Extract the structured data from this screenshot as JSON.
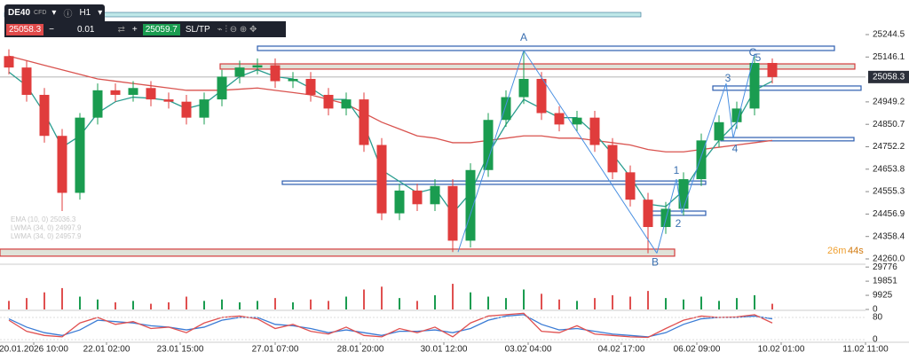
{
  "toolbar": {
    "symbol": "DE40",
    "badge": "CFD",
    "timeframe": "H1",
    "sell": "25058.3",
    "lot": "0.01",
    "buy": "25059.7",
    "sltp": "SL/TP"
  },
  "chart_data": {
    "type": "candlestick",
    "open": [
      25150,
      25100,
      24980,
      24800,
      24550,
      24880,
      25000,
      24980,
      25010,
      24960,
      24950,
      24880,
      24960,
      25060,
      25100,
      25110,
      25040,
      25050,
      24980,
      24920,
      24960,
      24760,
      24460,
      24560,
      24500,
      24580,
      24340,
      24650,
      24870,
      24970,
      25050,
      24900,
      24850,
      24880,
      24760,
      24640,
      24520,
      24400,
      24480,
      24610,
      24780,
      24860,
      24920,
      25120
    ],
    "high": [
      25180,
      25130,
      25010,
      24830,
      24900,
      25030,
      25030,
      25040,
      25040,
      24990,
      24980,
      24990,
      25090,
      25130,
      25140,
      25140,
      25080,
      25080,
      25010,
      24990,
      24990,
      24790,
      24590,
      24590,
      24610,
      24610,
      24680,
      24900,
      25000,
      25175,
      25080,
      24930,
      24910,
      24910,
      24790,
      24670,
      24550,
      24510,
      24640,
      24810,
      24890,
      24950,
      25150,
      25140
    ],
    "low": [
      25070,
      24950,
      24770,
      24470,
      24520,
      24850,
      24950,
      24950,
      24930,
      24920,
      24850,
      24850,
      24930,
      25030,
      25070,
      25010,
      25010,
      24950,
      24890,
      24890,
      24730,
      24430,
      24430,
      24470,
      24470,
      24290,
      24310,
      24620,
      24840,
      24940,
      24870,
      24820,
      24820,
      24730,
      24610,
      24490,
      24285,
      24370,
      24450,
      24580,
      24750,
      24830,
      24890,
      25030
    ],
    "close": [
      25100,
      24980,
      24800,
      24550,
      24880,
      25000,
      24980,
      25010,
      24960,
      24950,
      24880,
      24960,
      25060,
      25100,
      25110,
      25040,
      25050,
      24980,
      24920,
      24960,
      24760,
      24460,
      24560,
      24500,
      24580,
      24340,
      24650,
      24870,
      24970,
      25050,
      24900,
      24850,
      24880,
      24760,
      24640,
      24520,
      24400,
      24480,
      24610,
      24780,
      24860,
      24920,
      25120,
      25058.3
    ],
    "ma_fast": [
      25080,
      25020,
      24900,
      24750,
      24800,
      24900,
      24950,
      24970,
      24965,
      24955,
      24920,
      24940,
      25000,
      25060,
      25090,
      25060,
      25050,
      25010,
      24960,
      24960,
      24850,
      24650,
      24600,
      24550,
      24570,
      24460,
      24550,
      24720,
      24850,
      24960,
      24920,
      24880,
      24880,
      24810,
      24720,
      24620,
      24500,
      24490,
      24560,
      24680,
      24780,
      24860,
      25000,
      25040
    ],
    "ma_slow": [
      25150,
      25130,
      25110,
      25090,
      25070,
      25050,
      25040,
      25030,
      25020,
      25010,
      25000,
      25000,
      25000,
      25005,
      25010,
      25000,
      24990,
      24980,
      24960,
      24940,
      24900,
      24860,
      24830,
      24800,
      24790,
      24770,
      24770,
      24780,
      24790,
      24800,
      24800,
      24790,
      24790,
      24780,
      24770,
      24760,
      24740,
      24730,
      24730,
      24740,
      24750,
      24760,
      24770,
      24780
    ],
    "volume": [
      6000,
      8000,
      12000,
      15000,
      9000,
      7000,
      5000,
      6000,
      4000,
      5000,
      9000,
      6000,
      7000,
      5000,
      6000,
      8000,
      5000,
      7000,
      6000,
      9000,
      14000,
      16000,
      8000,
      6000,
      10000,
      18000,
      12000,
      9000,
      8000,
      14000,
      11000,
      7000,
      6000,
      8000,
      10000,
      9000,
      13000,
      8000,
      7000,
      9000,
      6000,
      8000,
      10000,
      4000
    ],
    "osc_k": [
      70,
      30,
      15,
      10,
      60,
      80,
      55,
      65,
      40,
      45,
      25,
      60,
      80,
      85,
      75,
      40,
      55,
      30,
      20,
      45,
      15,
      10,
      40,
      25,
      45,
      10,
      60,
      85,
      90,
      95,
      30,
      25,
      50,
      20,
      15,
      10,
      8,
      40,
      70,
      85,
      80,
      82,
      90,
      60
    ],
    "osc_d": [
      75,
      45,
      25,
      15,
      35,
      70,
      65,
      60,
      50,
      45,
      35,
      45,
      70,
      80,
      80,
      55,
      50,
      40,
      25,
      35,
      25,
      15,
      30,
      30,
      35,
      25,
      40,
      70,
      85,
      90,
      55,
      35,
      40,
      30,
      20,
      15,
      10,
      25,
      55,
      75,
      80,
      80,
      85,
      75
    ],
    "colors": {
      "up": "#1a9c50",
      "down": "#e03c3c",
      "ma_fast": "#2a9d8f",
      "ma_slow": "#d9534f",
      "osc_k": "#e05050",
      "osc_d": "#3a7bd5",
      "volume": "#e05050",
      "zone": "#2f5fb0",
      "wave": "#4a90e2"
    },
    "xlim": [
      -0.5,
      48.25
    ],
    "ylim": [
      24236.6,
      25396.3
    ],
    "yticks": [
      25244.5,
      25146.1,
      24949.2,
      24850.7,
      24752.2,
      24653.8,
      24555.3,
      24456.9,
      24358.4,
      {
        "value": 24260,
        "label": "24260.0"
      }
    ],
    "vol_ylim": [
      0,
      30500
    ],
    "vol_yticks": [
      29776,
      19851,
      9925,
      0
    ],
    "osc_ylim": [
      0,
      100
    ],
    "osc_yticks": [
      80,
      0
    ],
    "xticks": [
      {
        "value": 1.4,
        "label": "20.01.2026 10:00"
      },
      {
        "value": 5.5,
        "label": "22.01 02:00"
      },
      {
        "value": 9.65,
        "label": "23.01 15:00"
      },
      {
        "value": 15,
        "label": "27.01 07:00"
      },
      {
        "value": 19.8,
        "label": "28.01 20:00"
      },
      {
        "value": 24.5,
        "label": "30.01 12:00"
      },
      {
        "value": 29.25,
        "label": "03.02 04:00"
      },
      {
        "value": 34.5,
        "label": "04.02 17:00"
      },
      {
        "value": 38.75,
        "label": "06.02 09:00"
      },
      {
        "value": 43.5,
        "label": "10.02 01:00"
      },
      {
        "value": 48.25,
        "label": "11.02 11:00"
      }
    ],
    "last_price": 25058.3,
    "last_price_label": "25058.3",
    "timer": [
      "26m",
      "44s"
    ],
    "legend": [
      "EMA (10, 0) 25036.3",
      "LWMA (34, 0) 24997.9",
      "LWMA (34, 0) 24957.9"
    ],
    "zones": [
      {
        "from": 14,
        "to": 46.5,
        "top": 25193.9,
        "bottom": 25174.5,
        "kind": "blue"
      },
      {
        "from": 11.9,
        "to": 47.65,
        "top": 25116,
        "bottom": 25093,
        "kind": "red"
      },
      {
        "from": 39.65,
        "to": 48,
        "top": 25019,
        "bottom": 25000,
        "kind": "blue"
      },
      {
        "from": 40.1,
        "to": 47.6,
        "top": 24793,
        "bottom": 24778,
        "kind": "blue"
      },
      {
        "from": 15.4,
        "to": 39.25,
        "top": 24602,
        "bottom": 24587,
        "kind": "blue"
      },
      {
        "from": 36,
        "to": 39.25,
        "top": 24470,
        "bottom": 24451,
        "kind": "blue"
      },
      {
        "from": -0.5,
        "to": 37.5,
        "top": 24303,
        "bottom": 24272,
        "kind": "red"
      }
    ],
    "wave_points": [
      [
        25.3,
        24290
      ],
      [
        29,
        25175
      ],
      [
        36.5,
        24285
      ],
      [
        37.6,
        24610
      ],
      [
        37.9,
        24460
      ],
      [
        40.4,
        25030
      ],
      [
        40.8,
        24790
      ],
      [
        42,
        25160
      ]
    ],
    "wave_labels": [
      {
        "text": "A",
        "x": 29,
        "y": 25229
      },
      {
        "text": "C",
        "x": 41.9,
        "y": 25163
      },
      {
        "text": "5",
        "x": 42.2,
        "y": 25140
      },
      {
        "text": "3",
        "x": 40.5,
        "y": 25050
      },
      {
        "text": "4",
        "x": 40.9,
        "y": 24742
      },
      {
        "text": "1",
        "x": 37.6,
        "y": 24645
      },
      {
        "text": "2",
        "x": 37.7,
        "y": 24412
      },
      {
        "text": "B",
        "x": 36.4,
        "y": 24244
      }
    ]
  }
}
